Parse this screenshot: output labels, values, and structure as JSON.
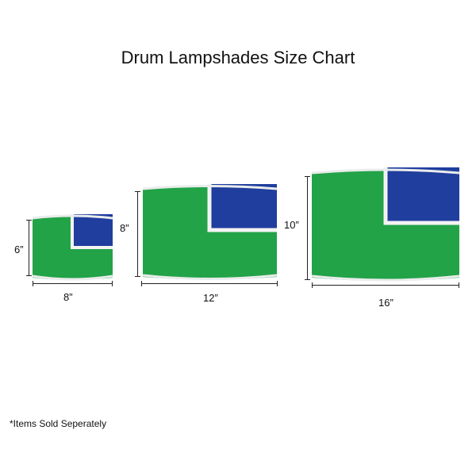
{
  "title": "Drum Lampshades Size Chart",
  "footnote": "*Items Sold Seperately",
  "colors": {
    "green": "#22a347",
    "blue": "#1f3e9e",
    "rim": "#e9ecec",
    "border": "#f3f3f3"
  },
  "shades": [
    {
      "width_label": "8”",
      "height_label": "6”"
    },
    {
      "width_label": "12”",
      "height_label": "8”"
    },
    {
      "width_label": "16”",
      "height_label": "10”"
    }
  ]
}
